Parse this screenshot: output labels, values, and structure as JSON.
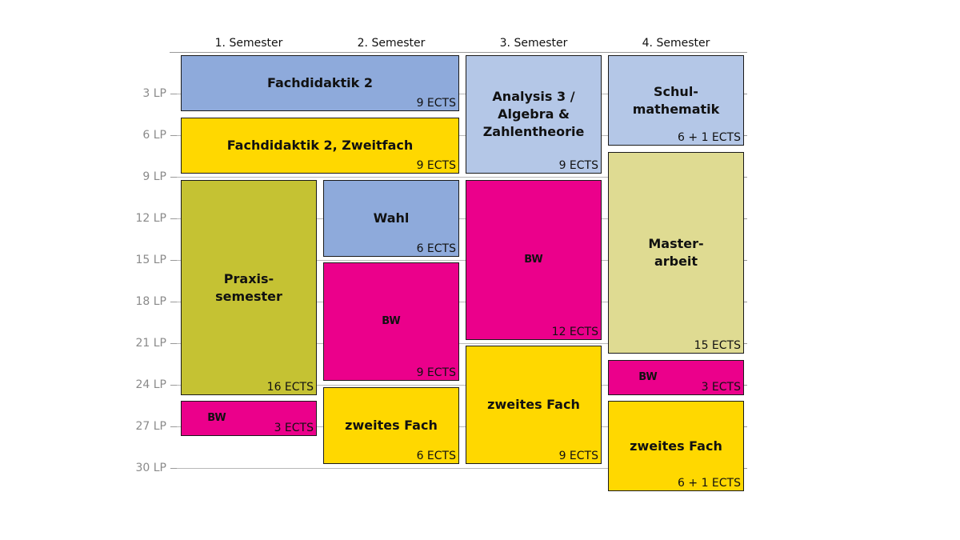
{
  "semesters": [
    "1. Semester",
    "2. Semester",
    "3. Semester",
    "4. Semester"
  ],
  "y_axis": {
    "unit": "LP",
    "ticks": [
      "3 LP",
      "6 LP",
      "9 LP",
      "12 LP",
      "15 LP",
      "18 LP",
      "21 LP",
      "24 LP",
      "27 LP",
      "30 LP"
    ]
  },
  "colors": {
    "blue": "#8eaadb",
    "light_blue": "#b4c7e7",
    "yellow": "#ffd800",
    "olive": "#c5c233",
    "khaki": "#dfdb92",
    "magenta": "#eb008b"
  },
  "modules": [
    {
      "id": "fachdidaktik-2",
      "semester": 1,
      "span": 2,
      "title": "Fachdidaktik 2",
      "ects": "9 ECTS",
      "color": "blue"
    },
    {
      "id": "fachdidaktik-2-zweitfach",
      "semester": 1,
      "span": 2,
      "title": "Fachdidaktik 2, Zweitfach",
      "ects": "9 ECTS",
      "color": "yellow"
    },
    {
      "id": "praxissemester",
      "semester": 1,
      "span": 1,
      "title": "Praxis-\nsemester",
      "ects": "16 ECTS",
      "color": "olive"
    },
    {
      "id": "bw-s1",
      "semester": 1,
      "span": 1,
      "title": "BW",
      "ects": "3 ECTS",
      "color": "magenta"
    },
    {
      "id": "wahl",
      "semester": 2,
      "span": 1,
      "title": "Wahl",
      "ects": "6 ECTS",
      "color": "blue"
    },
    {
      "id": "bw-s2",
      "semester": 2,
      "span": 1,
      "title": "BW",
      "ects": "9 ECTS",
      "color": "magenta"
    },
    {
      "id": "zweites-fach-s2",
      "semester": 2,
      "span": 1,
      "title": "zweites Fach",
      "ects": "6 ECTS",
      "color": "yellow"
    },
    {
      "id": "analysis-3",
      "semester": 3,
      "span": 1,
      "title": "Analysis 3 /\nAlgebra &\nZahlentheorie",
      "ects": "9 ECTS",
      "color": "light_blue"
    },
    {
      "id": "bw-s3",
      "semester": 3,
      "span": 1,
      "title": "BW",
      "ects": "12 ECTS",
      "color": "magenta"
    },
    {
      "id": "zweites-fach-s3",
      "semester": 3,
      "span": 1,
      "title": "zweites Fach",
      "ects": "9 ECTS",
      "color": "yellow"
    },
    {
      "id": "schulmathematik",
      "semester": 4,
      "span": 1,
      "title": "Schul-\nmathematik",
      "ects": "6 + 1 ECTS",
      "color": "light_blue"
    },
    {
      "id": "masterarbeit",
      "semester": 4,
      "span": 1,
      "title": "Master-\narbeit",
      "ects": "15 ECTS",
      "color": "khaki"
    },
    {
      "id": "bw-s4",
      "semester": 4,
      "span": 1,
      "title": "BW",
      "ects": "3 ECTS",
      "color": "magenta"
    },
    {
      "id": "zweites-fach-s4",
      "semester": 4,
      "span": 1,
      "title": "zweites Fach",
      "ects": "6 + 1 ECTS",
      "color": "yellow"
    }
  ]
}
